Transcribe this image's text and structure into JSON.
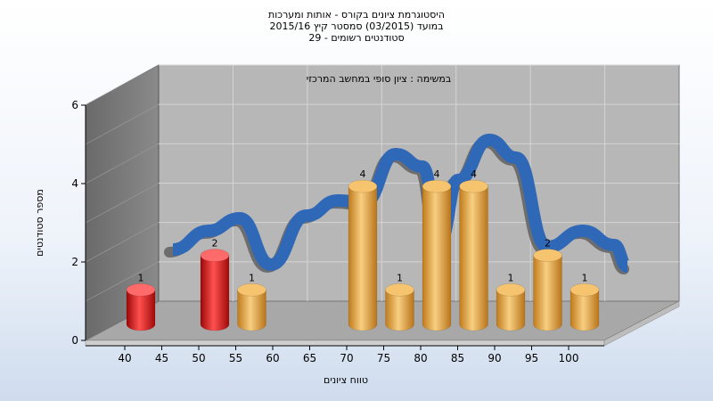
{
  "chart_data": {
    "type": "bar",
    "title_lines": [
      "היסטוגרמת ציונים בקורס - אותות ומערכות",
      "במועד  (03/2015)  סמסטר קיץ  2015/16",
      "סטודנטים רשומים - 29"
    ],
    "task_label": "במשימה : ציון סופי במחשב המרכזי",
    "xlabel": "טווח ציונים",
    "ylabel": "מספר סטודנטים",
    "x_ticks": [
      "40",
      "45",
      "50",
      "55",
      "60",
      "65",
      "70",
      "75",
      "80",
      "85",
      "90",
      "95",
      "100"
    ],
    "y_ticks": [
      0,
      2,
      4,
      6
    ],
    "ylim": [
      0,
      6
    ],
    "categories": [
      "40",
      "50",
      "55",
      "70",
      "75",
      "80",
      "85",
      "90",
      "95",
      "100"
    ],
    "values": [
      1,
      2,
      1,
      4,
      1,
      4,
      4,
      1,
      2,
      1
    ],
    "bar_colors": [
      "#d81818",
      "#d81818",
      "#e0a040",
      "#e0a040",
      "#e0a040",
      "#e0a040",
      "#e0a040",
      "#e0a040",
      "#e0a040",
      "#e0a040"
    ],
    "curve_color": "#3068b8",
    "curve_shadow_color": "#606060",
    "grid": true
  }
}
